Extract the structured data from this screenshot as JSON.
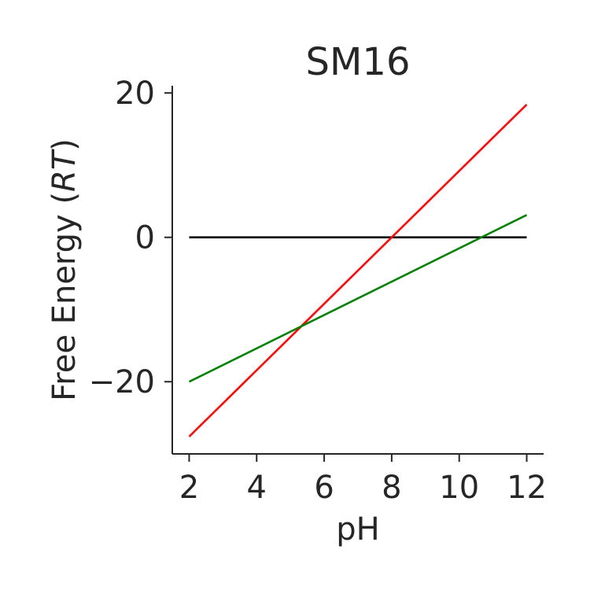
{
  "chart_data": {
    "type": "line",
    "title": "SM16",
    "xlabel": "pH",
    "ylabel_main": "Free Energy (",
    "ylabel_italic": "RT",
    "ylabel_close": ")",
    "xlim": [
      1.5,
      12.5
    ],
    "ylim": [
      -30,
      21
    ],
    "xticks": [
      2,
      4,
      6,
      8,
      10,
      12
    ],
    "xtick_labels": [
      "2",
      "4",
      "6",
      "8",
      "10",
      "12"
    ],
    "yticks": [
      20,
      0,
      -20
    ],
    "ytick_labels": [
      "20",
      "0",
      "−20"
    ],
    "grid": false,
    "series": [
      {
        "color": "#000000",
        "x": [
          2,
          12
        ],
        "y": [
          0,
          0
        ]
      },
      {
        "color": "#ff0000",
        "x": [
          2,
          12
        ],
        "y": [
          -27.6,
          18.4
        ]
      },
      {
        "color": "#008000",
        "x": [
          2,
          12
        ],
        "y": [
          -20.0,
          3.1
        ]
      }
    ]
  }
}
